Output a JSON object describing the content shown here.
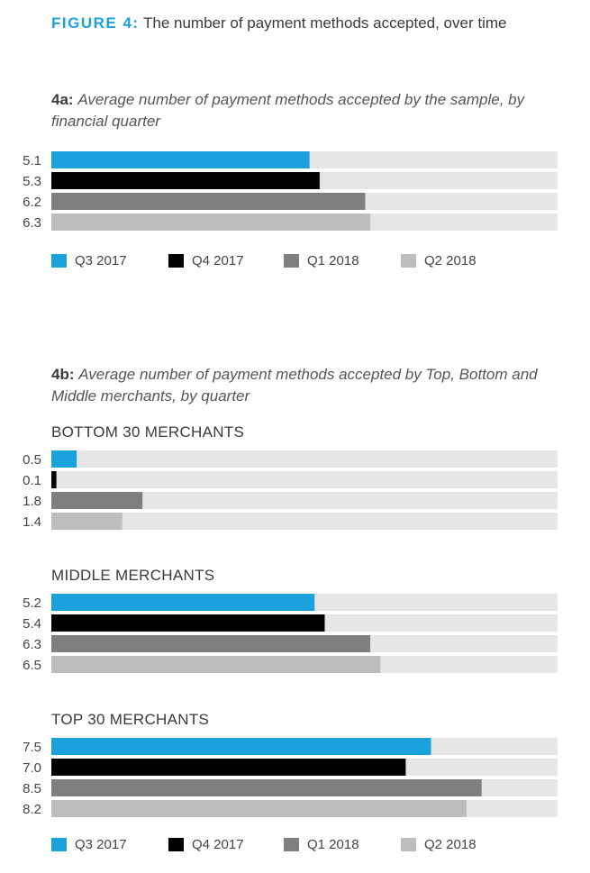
{
  "figure": {
    "label": "FIGURE 4:",
    "title": "The number of payment methods accepted, over time"
  },
  "colors": {
    "q3_2017": "#1ba1dc",
    "q4_2017": "#000000",
    "q1_2018": "#7f7f80",
    "q2_2018": "#bdbdbe",
    "track": "#e6e6e8"
  },
  "section_a": {
    "tag": "4a:",
    "title": "Average number of payment methods accepted by the sample, by financial quarter"
  },
  "section_b": {
    "tag": "4b:",
    "title": "Average number of payment methods accepted by Top, Bottom and Middle merchants, by quarter"
  },
  "legend": [
    "Q3 2017",
    "Q4 2017",
    "Q1 2018",
    "Q2 2018"
  ],
  "chart_data": [
    {
      "type": "bar",
      "orientation": "horizontal",
      "title": "",
      "categories": [
        "Q3 2017",
        "Q4 2017",
        "Q1 2018",
        "Q2 2018"
      ],
      "values": [
        5.1,
        5.3,
        6.2,
        6.3
      ],
      "value_labels": [
        "5.1",
        "5.3",
        "6.2",
        "6.3"
      ],
      "xlim": [
        0,
        10
      ],
      "legend_position": "bottom"
    },
    {
      "type": "bar",
      "orientation": "horizontal",
      "title": "BOTTOM 30 MERCHANTS",
      "categories": [
        "Q3 2017",
        "Q4 2017",
        "Q1 2018",
        "Q2 2018"
      ],
      "values": [
        0.5,
        0.1,
        1.8,
        1.4
      ],
      "value_labels": [
        "0.5",
        "0.1",
        "1.8",
        "1.4"
      ],
      "xlim": [
        0,
        10
      ]
    },
    {
      "type": "bar",
      "orientation": "horizontal",
      "title": "MIDDLE MERCHANTS",
      "categories": [
        "Q3 2017",
        "Q4 2017",
        "Q1 2018",
        "Q2 2018"
      ],
      "values": [
        5.2,
        5.4,
        6.3,
        6.5
      ],
      "value_labels": [
        "5.2",
        "5.4",
        "6.3",
        "6.5"
      ],
      "xlim": [
        0,
        10
      ]
    },
    {
      "type": "bar",
      "orientation": "horizontal",
      "title": "TOP 30 MERCHANTS",
      "categories": [
        "Q3 2017",
        "Q4 2017",
        "Q1 2018",
        "Q2 2018"
      ],
      "values": [
        7.5,
        7.0,
        8.5,
        8.2
      ],
      "value_labels": [
        "7.5",
        "7.0",
        "8.5",
        "8.2"
      ],
      "xlim": [
        0,
        10
      ],
      "legend_position": "bottom"
    }
  ]
}
